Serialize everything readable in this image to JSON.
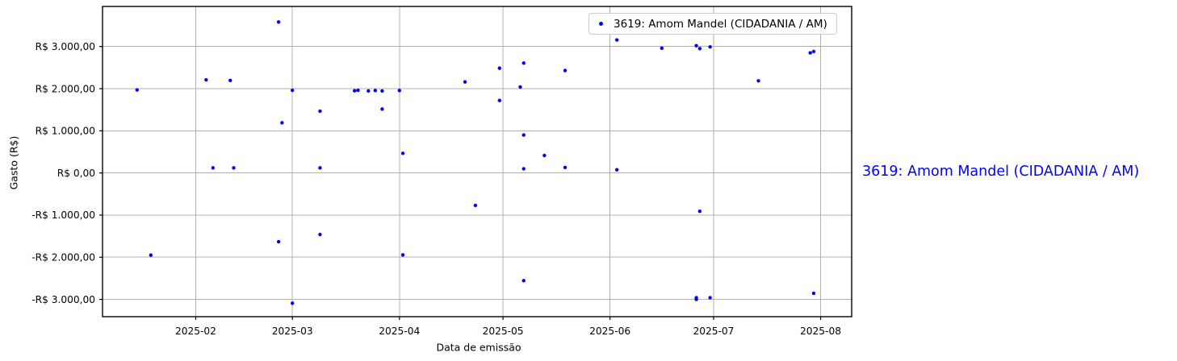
{
  "side_label": {
    "text": "3619: Amom Mandel (CIDADANIA / AM)",
    "color": "#0000ff"
  },
  "chart_data": {
    "type": "scatter",
    "title": "",
    "xlabel": "Data de emissão",
    "ylabel": "Gasto (R$)",
    "legend": {
      "label": "3619: Amom Mandel (CIDADANIA / AM)",
      "position": "upper right",
      "marker_color": "#0000ff"
    },
    "grid": true,
    "grid_color": "#b0b0b0",
    "point_color": "#0000ff",
    "xlim": [
      "2025-01-05",
      "2025-08-10"
    ],
    "ylim": [
      -3410,
      3950
    ],
    "x_ticks": [
      {
        "date": "2025-02-01",
        "label": "2025-02"
      },
      {
        "date": "2025-03-01",
        "label": "2025-03"
      },
      {
        "date": "2025-04-01",
        "label": "2025-04"
      },
      {
        "date": "2025-05-01",
        "label": "2025-05"
      },
      {
        "date": "2025-06-01",
        "label": "2025-06"
      },
      {
        "date": "2025-07-01",
        "label": "2025-07"
      },
      {
        "date": "2025-08-01",
        "label": "2025-08"
      }
    ],
    "y_ticks": [
      {
        "value": 3000,
        "label": "R$ 3.000,00"
      },
      {
        "value": 2000,
        "label": "R$ 2.000,00"
      },
      {
        "value": 1000,
        "label": "R$ 1.000,00"
      },
      {
        "value": 0,
        "label": "R$ 0,00"
      },
      {
        "value": -1000,
        "label": "-R$ 1.000,00"
      },
      {
        "value": -2000,
        "label": "-R$ 2.000,00"
      },
      {
        "value": -3000,
        "label": "-R$ 3.000,00"
      }
    ],
    "points": [
      {
        "x": "2025-01-15",
        "y": 1970
      },
      {
        "x": "2025-01-19",
        "y": -1950
      },
      {
        "x": "2025-02-04",
        "y": 2210
      },
      {
        "x": "2025-02-06",
        "y": 120
      },
      {
        "x": "2025-02-11",
        "y": 2195
      },
      {
        "x": "2025-02-12",
        "y": 120
      },
      {
        "x": "2025-02-25",
        "y": 3580
      },
      {
        "x": "2025-02-25",
        "y": -1630
      },
      {
        "x": "2025-02-26",
        "y": 1190
      },
      {
        "x": "2025-03-01",
        "y": 1960
      },
      {
        "x": "2025-03-01",
        "y": -3090
      },
      {
        "x": "2025-03-09",
        "y": 1465
      },
      {
        "x": "2025-03-09",
        "y": 120
      },
      {
        "x": "2025-03-09",
        "y": -1460
      },
      {
        "x": "2025-03-19",
        "y": 1950
      },
      {
        "x": "2025-03-20",
        "y": 1960
      },
      {
        "x": "2025-03-23",
        "y": 1945
      },
      {
        "x": "2025-03-25",
        "y": 1955
      },
      {
        "x": "2025-03-27",
        "y": 1945
      },
      {
        "x": "2025-03-27",
        "y": 1515
      },
      {
        "x": "2025-04-01",
        "y": 1955
      },
      {
        "x": "2025-04-02",
        "y": 465
      },
      {
        "x": "2025-04-02",
        "y": -1945
      },
      {
        "x": "2025-04-20",
        "y": 2160
      },
      {
        "x": "2025-04-23",
        "y": -770
      },
      {
        "x": "2025-04-30",
        "y": 2485
      },
      {
        "x": "2025-04-30",
        "y": 1720
      },
      {
        "x": "2025-05-06",
        "y": 2040
      },
      {
        "x": "2025-05-07",
        "y": 2605
      },
      {
        "x": "2025-05-07",
        "y": 900
      },
      {
        "x": "2025-05-07",
        "y": 100
      },
      {
        "x": "2025-05-07",
        "y": -2555
      },
      {
        "x": "2025-05-13",
        "y": 415
      },
      {
        "x": "2025-05-19",
        "y": 2430
      },
      {
        "x": "2025-05-19",
        "y": 130
      },
      {
        "x": "2025-06-03",
        "y": 3155
      },
      {
        "x": "2025-06-03",
        "y": 75
      },
      {
        "x": "2025-06-16",
        "y": 2960
      },
      {
        "x": "2025-06-26",
        "y": 3020
      },
      {
        "x": "2025-06-27",
        "y": 2950
      },
      {
        "x": "2025-06-30",
        "y": 2990
      },
      {
        "x": "2025-06-26",
        "y": -2960
      },
      {
        "x": "2025-06-26",
        "y": -3000
      },
      {
        "x": "2025-06-27",
        "y": -910
      },
      {
        "x": "2025-06-30",
        "y": -2960
      },
      {
        "x": "2025-07-14",
        "y": 2185
      },
      {
        "x": "2025-07-29",
        "y": 2850
      },
      {
        "x": "2025-07-30",
        "y": 2880
      },
      {
        "x": "2025-07-30",
        "y": -2855
      }
    ]
  }
}
